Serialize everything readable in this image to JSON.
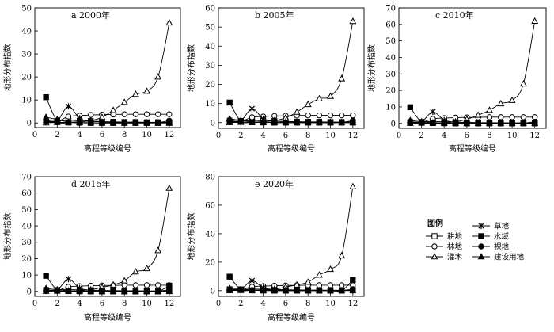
{
  "figure": {
    "legend": {
      "title": "图例",
      "placement": "bottom-right",
      "entries": [
        {
          "name": "耕地",
          "marker": "square-open"
        },
        {
          "name": "林地",
          "marker": "circle-open"
        },
        {
          "name": "灌木",
          "marker": "triangle-open"
        },
        {
          "name": "草地",
          "marker": "asterisk"
        },
        {
          "name": "水域",
          "marker": "square-filled"
        },
        {
          "name": "裸地",
          "marker": "circle-filled"
        },
        {
          "name": "建设用地",
          "marker": "triangle-filled"
        }
      ]
    }
  },
  "chart_data": [
    {
      "type": "line",
      "title": "a 2000年",
      "xlabel": "高程等级编号",
      "ylabel": "地形分布指数",
      "xlim": [
        0,
        13
      ],
      "ylim": [
        -2,
        50
      ],
      "xticks": [
        0,
        2,
        4,
        6,
        8,
        10,
        12
      ],
      "yticks": [
        0,
        10,
        20,
        30,
        40,
        50
      ],
      "grid": false,
      "x": [
        1,
        2,
        3,
        4,
        5,
        6,
        7,
        8,
        9,
        10,
        11,
        12
      ],
      "series": [
        {
          "name": "耕地",
          "marker": "square-open",
          "values": [
            0.5,
            0.8,
            1.2,
            0.9,
            0.8,
            0.6,
            0.5,
            0.4,
            0.4,
            0.3,
            0.3,
            0.3
          ]
        },
        {
          "name": "林地",
          "marker": "circle-open",
          "values": [
            0.2,
            0.6,
            2.8,
            3.2,
            3.5,
            3.6,
            3.7,
            3.8,
            3.8,
            3.8,
            3.8,
            3.8
          ]
        },
        {
          "name": "灌木",
          "marker": "triangle-open",
          "values": [
            0.1,
            0.2,
            0.3,
            0.5,
            1.0,
            2.5,
            5.5,
            9.0,
            12.5,
            13.8,
            20.0,
            43.5
          ]
        },
        {
          "name": "草地",
          "marker": "asterisk",
          "values": [
            1.2,
            1.0,
            7.2,
            2.0,
            0.8,
            0.5,
            0.3,
            0.2,
            0.2,
            0.2,
            0.2,
            0.2
          ]
        },
        {
          "name": "水域",
          "marker": "square-filled",
          "values": [
            11.2,
            0.8,
            0.2,
            0.1,
            0,
            0,
            0,
            0,
            0,
            0,
            0,
            0
          ]
        },
        {
          "name": "裸地",
          "marker": "circle-filled",
          "values": [
            0.5,
            0.3,
            0.2,
            0.1,
            0.1,
            0,
            0,
            0,
            0,
            0,
            0.2,
            1.0
          ]
        },
        {
          "name": "建设用地",
          "marker": "triangle-filled",
          "values": [
            2.5,
            1.5,
            0.4,
            0.2,
            0.1,
            0,
            0,
            0,
            0,
            0,
            0,
            0
          ]
        }
      ]
    },
    {
      "type": "line",
      "title": "b 2005年",
      "xlabel": "高程等级编号",
      "ylabel": "地形分布指数",
      "xlim": [
        0,
        13
      ],
      "ylim": [
        -3,
        60
      ],
      "xticks": [
        0,
        2,
        4,
        6,
        8,
        10,
        12
      ],
      "yticks": [
        0,
        10,
        20,
        30,
        40,
        50,
        60
      ],
      "grid": false,
      "x": [
        1,
        2,
        3,
        4,
        5,
        6,
        7,
        8,
        9,
        10,
        11,
        12
      ],
      "series": [
        {
          "name": "耕地",
          "marker": "square-open",
          "values": [
            0.5,
            0.8,
            1.2,
            0.9,
            0.8,
            0.6,
            0.5,
            0.4,
            0.4,
            0.3,
            0.3,
            0.3
          ]
        },
        {
          "name": "林地",
          "marker": "circle-open",
          "values": [
            0.2,
            0.6,
            2.8,
            3.2,
            3.5,
            3.6,
            3.7,
            3.8,
            3.8,
            3.8,
            3.8,
            3.8
          ]
        },
        {
          "name": "灌木",
          "marker": "triangle-open",
          "values": [
            0.1,
            0.2,
            0.3,
            0.5,
            1.0,
            2.5,
            5.5,
            9.5,
            12.5,
            13.8,
            23.0,
            53.0
          ]
        },
        {
          "name": "草地",
          "marker": "asterisk",
          "values": [
            1.2,
            1.0,
            7.3,
            2.0,
            0.8,
            0.5,
            0.3,
            0.2,
            0.2,
            0.2,
            0.2,
            0.2
          ]
        },
        {
          "name": "水域",
          "marker": "square-filled",
          "values": [
            10.5,
            0.8,
            0.2,
            0.1,
            0,
            0,
            0,
            0,
            0,
            0,
            0,
            0
          ]
        },
        {
          "name": "裸地",
          "marker": "circle-filled",
          "values": [
            0.5,
            0.3,
            0.2,
            0.1,
            0.1,
            0,
            0,
            0,
            0,
            0,
            0.2,
            1.0
          ]
        },
        {
          "name": "建设用地",
          "marker": "triangle-filled",
          "values": [
            2.0,
            1.2,
            0.4,
            0.2,
            0.1,
            0,
            0,
            0,
            0,
            0,
            0,
            0
          ]
        }
      ]
    },
    {
      "type": "line",
      "title": "c 2010年",
      "xlabel": "高程等级编号",
      "ylabel": "地形分布指数",
      "xlim": [
        0,
        13
      ],
      "ylim": [
        -3,
        70
      ],
      "xticks": [
        0,
        2,
        4,
        6,
        8,
        10,
        12
      ],
      "yticks": [
        0,
        10,
        20,
        30,
        40,
        50,
        60,
        70
      ],
      "grid": false,
      "x": [
        1,
        2,
        3,
        4,
        5,
        6,
        7,
        8,
        9,
        10,
        11,
        12
      ],
      "series": [
        {
          "name": "耕地",
          "marker": "square-open",
          "values": [
            0.5,
            0.8,
            1.2,
            0.9,
            0.8,
            0.6,
            0.5,
            0.4,
            0.4,
            0.3,
            0.3,
            0.3
          ]
        },
        {
          "name": "林地",
          "marker": "circle-open",
          "values": [
            0.2,
            0.6,
            2.8,
            3.2,
            3.5,
            3.6,
            3.7,
            3.8,
            3.8,
            3.8,
            3.8,
            3.8
          ]
        },
        {
          "name": "灌木",
          "marker": "triangle-open",
          "values": [
            0.1,
            0.2,
            0.3,
            0.5,
            1.0,
            2.5,
            5.0,
            8.0,
            12.0,
            14.0,
            24.0,
            62.0
          ]
        },
        {
          "name": "草地",
          "marker": "asterisk",
          "values": [
            1.2,
            1.0,
            7.0,
            2.0,
            0.8,
            0.5,
            0.3,
            0.2,
            0.2,
            0.2,
            0.2,
            0.2
          ]
        },
        {
          "name": "水域",
          "marker": "square-filled",
          "values": [
            9.8,
            0.8,
            0.2,
            0.1,
            0,
            0,
            0,
            0,
            0,
            0,
            0,
            0
          ]
        },
        {
          "name": "裸地",
          "marker": "circle-filled",
          "values": [
            0.5,
            0.3,
            0.2,
            0.1,
            0.1,
            0,
            0,
            0,
            0,
            0,
            0.2,
            1.0
          ]
        },
        {
          "name": "建设用地",
          "marker": "triangle-filled",
          "values": [
            1.8,
            1.0,
            0.4,
            0.2,
            0.1,
            0,
            0,
            0,
            0,
            0,
            0,
            0
          ]
        }
      ]
    },
    {
      "type": "line",
      "title": "d 2015年",
      "xlabel": "高程等级编号",
      "ylabel": "地形分布指数",
      "xlim": [
        0,
        13
      ],
      "ylim": [
        -3,
        70
      ],
      "xticks": [
        0,
        2,
        4,
        6,
        8,
        10,
        12
      ],
      "yticks": [
        0,
        10,
        20,
        30,
        40,
        50,
        60,
        70
      ],
      "grid": false,
      "x": [
        1,
        2,
        3,
        4,
        5,
        6,
        7,
        8,
        9,
        10,
        11,
        12
      ],
      "series": [
        {
          "name": "耕地",
          "marker": "square-open",
          "values": [
            0.5,
            0.8,
            1.2,
            0.9,
            0.8,
            0.6,
            0.5,
            0.4,
            0.4,
            0.3,
            0.3,
            0.3
          ]
        },
        {
          "name": "林地",
          "marker": "circle-open",
          "values": [
            0.2,
            0.6,
            2.8,
            3.2,
            3.5,
            3.6,
            3.7,
            3.8,
            3.8,
            3.8,
            3.8,
            3.8
          ]
        },
        {
          "name": "灌木",
          "marker": "triangle-open",
          "values": [
            0.1,
            0.2,
            0.3,
            0.5,
            1.0,
            2.5,
            4.0,
            6.5,
            12.0,
            14.0,
            25.0,
            63.0
          ]
        },
        {
          "name": "草地",
          "marker": "asterisk",
          "values": [
            1.2,
            1.0,
            7.5,
            2.0,
            0.8,
            0.5,
            0.3,
            0.2,
            0.2,
            0.2,
            0.2,
            0.2
          ]
        },
        {
          "name": "水域",
          "marker": "square-filled",
          "values": [
            9.5,
            0.8,
            0.2,
            0.1,
            0,
            0,
            0,
            0,
            0,
            0,
            0,
            3.5
          ]
        },
        {
          "name": "裸地",
          "marker": "circle-filled",
          "values": [
            0.5,
            0.3,
            0.2,
            0.1,
            0.1,
            0,
            0,
            0,
            0,
            0,
            0.2,
            1.0
          ]
        },
        {
          "name": "建设用地",
          "marker": "triangle-filled",
          "values": [
            1.8,
            1.0,
            0.4,
            0.2,
            0.1,
            0,
            0,
            0,
            0,
            0,
            0,
            0
          ]
        }
      ]
    },
    {
      "type": "line",
      "title": "e 2020年",
      "xlabel": "高程等级编号",
      "ylabel": "地形分布指数",
      "xlim": [
        0,
        13
      ],
      "ylim": [
        -4,
        80
      ],
      "xticks": [
        0,
        2,
        4,
        6,
        8,
        10,
        12
      ],
      "yticks": [
        0,
        20,
        40,
        60,
        80
      ],
      "grid": false,
      "x": [
        1,
        2,
        3,
        4,
        5,
        6,
        7,
        8,
        9,
        10,
        11,
        12
      ],
      "series": [
        {
          "name": "耕地",
          "marker": "square-open",
          "values": [
            0.5,
            0.8,
            1.2,
            0.9,
            0.8,
            0.6,
            0.5,
            0.4,
            0.4,
            0.3,
            0.3,
            0.3
          ]
        },
        {
          "name": "林地",
          "marker": "circle-open",
          "values": [
            0.2,
            0.6,
            2.8,
            3.2,
            3.5,
            3.6,
            3.7,
            3.8,
            3.8,
            3.8,
            3.8,
            3.8
          ]
        },
        {
          "name": "灌木",
          "marker": "triangle-open",
          "values": [
            0.1,
            0.2,
            0.3,
            0.5,
            1.0,
            2.5,
            4.0,
            6.0,
            11.0,
            15.0,
            24.5,
            73.0
          ]
        },
        {
          "name": "草地",
          "marker": "asterisk",
          "values": [
            1.2,
            1.0,
            7.0,
            2.0,
            0.8,
            0.5,
            0.3,
            0.2,
            0.2,
            0.2,
            0.2,
            0.2
          ]
        },
        {
          "name": "水域",
          "marker": "square-filled",
          "values": [
            9.8,
            0.8,
            0.2,
            0.1,
            0,
            0,
            0,
            0,
            0,
            0,
            0,
            7.5
          ]
        },
        {
          "name": "裸地",
          "marker": "circle-filled",
          "values": [
            0.5,
            0.3,
            0.2,
            0.1,
            0.1,
            0,
            0,
            0,
            0,
            0,
            0.2,
            1.0
          ]
        },
        {
          "name": "建设用地",
          "marker": "triangle-filled",
          "values": [
            1.8,
            1.0,
            0.4,
            0.2,
            0.1,
            0,
            0,
            0,
            0,
            0,
            0,
            0
          ]
        }
      ]
    }
  ]
}
